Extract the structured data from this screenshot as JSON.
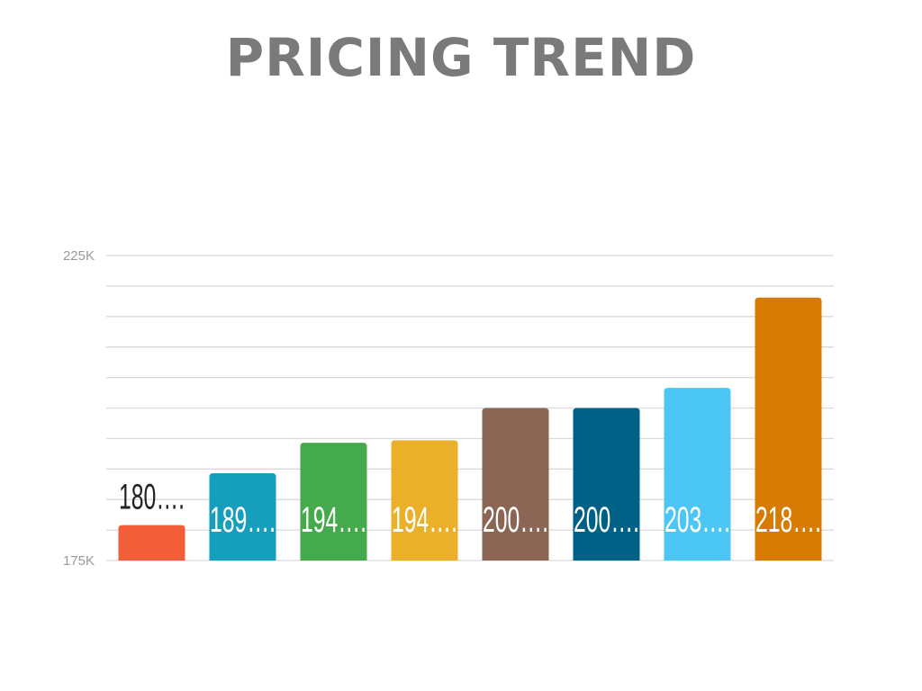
{
  "chart_data": {
    "type": "bar",
    "title": "PRICING TREND",
    "xlabel": "",
    "ylabel": "",
    "ylim": [
      175000,
      225000
    ],
    "y_ticks": [
      {
        "value": 175000,
        "label": "175K"
      },
      {
        "value": 225000,
        "label": "225K"
      }
    ],
    "grid": true,
    "grid_step": 5000,
    "legend": "none",
    "categories": [
      "",
      "",
      "",
      "",
      "",
      "",
      "",
      ""
    ],
    "values": [
      180800,
      189300,
      194300,
      194700,
      200000,
      200000,
      203300,
      218100
    ],
    "data_labels": [
      "180….",
      "189….",
      "194….",
      "194….",
      "200….",
      "200….",
      "203….",
      "218…."
    ],
    "colors": [
      "#f15e37",
      "#169ebd",
      "#45aa4b",
      "#ebb02a",
      "#8b6655",
      "#006186",
      "#4bc6f5",
      "#d87b02"
    ]
  }
}
